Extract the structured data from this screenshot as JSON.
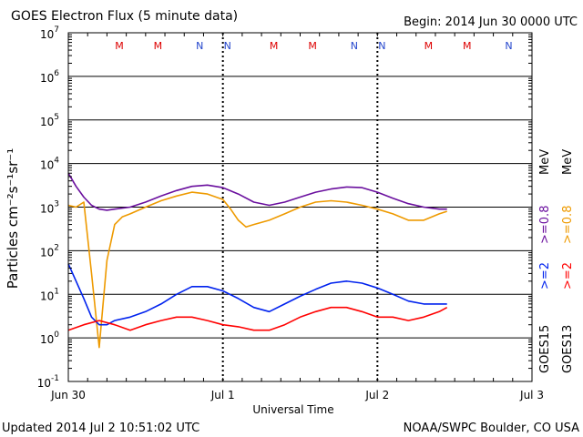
{
  "header": {
    "title": "GOES Electron Flux (5 minute data)",
    "begin": "Begin: 2014 Jun 30 0000 UTC"
  },
  "footer": {
    "updated": "Updated 2014 Jul  2 10:51:02 UTC",
    "credit": "NOAA/SWPC Boulder, CO USA"
  },
  "legend": {
    "goes15": "GOES15",
    "goes13": "GOES13",
    "g15_2": ">=2",
    "g15_08": ">=0.8",
    "g13_2": ">=2",
    "g13_08": ">=0.8",
    "mev_top": "MeV",
    "mev_bottom": "MeV"
  },
  "colors": {
    "g15_2": "#0022ee",
    "g13_2": "#ff0000",
    "g15_08": "#6a0f9e",
    "g13_08": "#ee9a00",
    "marker_M": "#dd0000",
    "marker_N": "#2244cc",
    "threshold": "#000000"
  },
  "markers": [
    {
      "label": "M",
      "t": 0.33
    },
    {
      "label": "M",
      "t": 0.58
    },
    {
      "label": "N",
      "t": 0.85
    },
    {
      "label": "N",
      "t": 1.03
    },
    {
      "label": "M",
      "t": 1.33
    },
    {
      "label": "M",
      "t": 1.58
    },
    {
      "label": "N",
      "t": 1.85
    },
    {
      "label": "N",
      "t": 2.03
    },
    {
      "label": "M",
      "t": 2.33
    },
    {
      "label": "M",
      "t": 2.58
    },
    {
      "label": "N",
      "t": 2.85
    },
    {
      "label": "N",
      "t": 3.03
    }
  ],
  "chart_data": {
    "type": "line",
    "title": "GOES Electron Flux (5 minute data)",
    "xlabel": "Universal Time",
    "ylabel": "Particles cm⁻²s⁻¹sr⁻¹",
    "x_unit": "days since 2014 Jun 30 0000 UTC",
    "xlim": [
      0,
      3
    ],
    "ylim": [
      0.1,
      10000000
    ],
    "yscale": "log",
    "grid": true,
    "x_ticks": [
      {
        "t": 0,
        "label": "Jun 30"
      },
      {
        "t": 1,
        "label": "Jul 1"
      },
      {
        "t": 2,
        "label": "Jul 2"
      },
      {
        "t": 3,
        "label": "Jul 3"
      }
    ],
    "y_ticks": [
      {
        "v": 0.1,
        "base": "10",
        "exp": "-1"
      },
      {
        "v": 1,
        "base": "10",
        "exp": "0"
      },
      {
        "v": 10,
        "base": "10",
        "exp": "1"
      },
      {
        "v": 100,
        "base": "10",
        "exp": "2"
      },
      {
        "v": 1000,
        "base": "10",
        "exp": "3"
      },
      {
        "v": 10000,
        "base": "10",
        "exp": "4"
      },
      {
        "v": 100000,
        "base": "10",
        "exp": "5"
      },
      {
        "v": 1000000,
        "base": "10",
        "exp": "6"
      },
      {
        "v": 10000000,
        "base": "10",
        "exp": "7"
      }
    ],
    "threshold": 1000,
    "series": [
      {
        "name": "GOES15 >=0.8 MeV",
        "key": "g15_08",
        "x": [
          0,
          0.05,
          0.1,
          0.15,
          0.2,
          0.25,
          0.3,
          0.4,
          0.5,
          0.6,
          0.7,
          0.8,
          0.9,
          1.0,
          1.1,
          1.2,
          1.3,
          1.4,
          1.5,
          1.6,
          1.7,
          1.8,
          1.9,
          2.0,
          2.1,
          2.2,
          2.3,
          2.4,
          2.45
        ],
        "y": [
          6000,
          3000,
          1700,
          1100,
          900,
          850,
          900,
          1000,
          1300,
          1800,
          2400,
          3000,
          3200,
          2800,
          2000,
          1300,
          1100,
          1300,
          1700,
          2200,
          2600,
          2900,
          2800,
          2200,
          1600,
          1200,
          1000,
          900,
          900
        ]
      },
      {
        "name": "GOES13 >=0.8 MeV",
        "key": "g13_08",
        "x": [
          0,
          0.05,
          0.1,
          0.15,
          0.2,
          0.25,
          0.3,
          0.35,
          0.4,
          0.5,
          0.6,
          0.7,
          0.8,
          0.9,
          1.0,
          1.05,
          1.1,
          1.15,
          1.2,
          1.3,
          1.4,
          1.5,
          1.6,
          1.7,
          1.8,
          1.9,
          2.0,
          2.1,
          2.2,
          2.3,
          2.4,
          2.45
        ],
        "y": [
          1100,
          1000,
          1300,
          30,
          0.6,
          60,
          400,
          600,
          700,
          1000,
          1400,
          1800,
          2200,
          2000,
          1500,
          900,
          500,
          350,
          400,
          500,
          700,
          1000,
          1300,
          1400,
          1300,
          1100,
          900,
          700,
          500,
          500,
          700,
          800
        ]
      },
      {
        "name": "GOES15 >=2 MeV",
        "key": "g15_2",
        "x": [
          0,
          0.05,
          0.1,
          0.15,
          0.2,
          0.25,
          0.3,
          0.4,
          0.5,
          0.6,
          0.7,
          0.8,
          0.9,
          1.0,
          1.1,
          1.2,
          1.3,
          1.4,
          1.5,
          1.6,
          1.7,
          1.8,
          1.9,
          2.0,
          2.1,
          2.2,
          2.3,
          2.4,
          2.45
        ],
        "y": [
          50,
          20,
          8,
          3,
          2,
          2,
          2.5,
          3,
          4,
          6,
          10,
          15,
          15,
          12,
          8,
          5,
          4,
          6,
          9,
          13,
          18,
          20,
          18,
          14,
          10,
          7,
          6,
          6,
          6
        ]
      },
      {
        "name": "GOES13 >=2 MeV",
        "key": "g13_2",
        "x": [
          0,
          0.1,
          0.2,
          0.3,
          0.4,
          0.5,
          0.6,
          0.7,
          0.8,
          0.9,
          1.0,
          1.1,
          1.2,
          1.3,
          1.4,
          1.5,
          1.6,
          1.7,
          1.8,
          1.9,
          2.0,
          2.1,
          2.2,
          2.3,
          2.4,
          2.45
        ],
        "y": [
          1.5,
          2,
          2.5,
          2,
          1.5,
          2,
          2.5,
          3,
          3,
          2.5,
          2,
          1.8,
          1.5,
          1.5,
          2,
          3,
          4,
          5,
          5,
          4,
          3,
          3,
          2.5,
          3,
          4,
          5
        ]
      }
    ]
  }
}
